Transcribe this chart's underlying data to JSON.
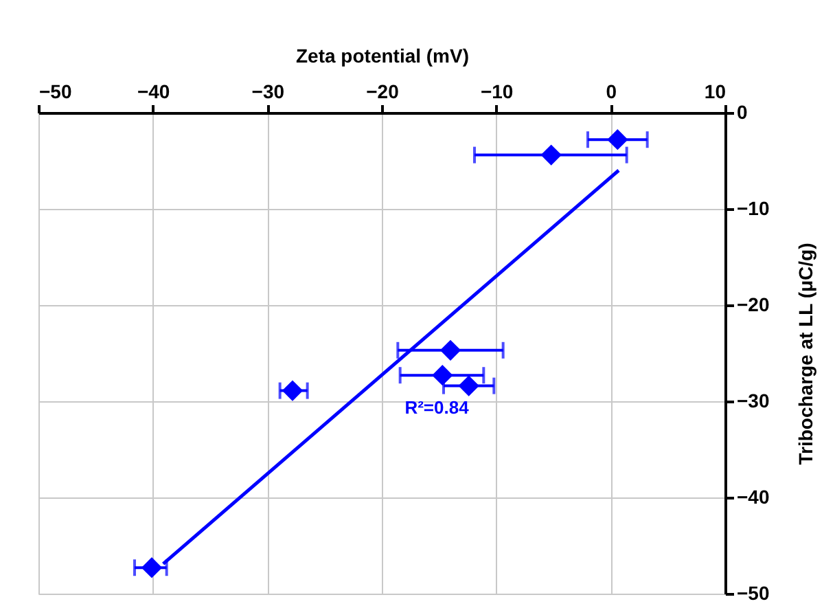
{
  "chart_data": {
    "type": "scatter",
    "xlabel": "Zeta potential (mV)",
    "ylabel": "Tribocharge at LL (μC/g)",
    "xlim": [
      -50,
      10
    ],
    "xticks": [
      -50,
      -40,
      -30,
      -20,
      -10,
      0,
      10
    ],
    "ylim": [
      -50,
      0
    ],
    "yticks": [
      -50,
      -40,
      -30,
      -20,
      -10,
      0
    ],
    "grid": true,
    "series": [
      {
        "marker": "diamond",
        "color": "#0000ff",
        "x": [
          0.6,
          -5.2,
          -14.0,
          -14.7,
          -12.4,
          -27.8,
          -40.1
        ],
        "values": [
          -2.8,
          -4.4,
          -24.7,
          -27.3,
          -28.4,
          -28.9,
          -47.3
        ],
        "xerrors": [
          [
            -2.0,
            3.2
          ],
          [
            -11.9,
            1.4
          ],
          [
            -18.6,
            -9.4
          ],
          [
            -18.4,
            -11.1
          ],
          [
            -14.6,
            -10.2
          ],
          [
            -28.9,
            -26.5
          ],
          [
            -41.6,
            -38.8
          ]
        ]
      },
      {
        "type": "line",
        "marker": "none",
        "line_style": "solid",
        "color": "#0000ff",
        "x": [
          -39.1,
          0.7
        ],
        "values": [
          -46.9,
          -6.0
        ]
      }
    ],
    "annotations": [
      "R²=0.84"
    ]
  }
}
